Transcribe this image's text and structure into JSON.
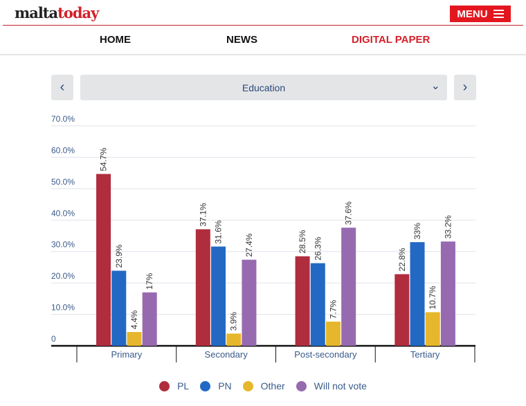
{
  "header": {
    "logo_part1": "malta",
    "logo_part2": "today",
    "menu_label": "MENU"
  },
  "nav": {
    "items": [
      "HOME",
      "NEWS",
      "DIGITAL PAPER"
    ]
  },
  "selector": {
    "prev": "‹",
    "value": "Education",
    "next": "›",
    "chevron": "⌄"
  },
  "chart_data": {
    "type": "bar",
    "title": "Education",
    "categories": [
      "Primary",
      "Secondary",
      "Post-secondary",
      "Tertiary"
    ],
    "series": [
      {
        "name": "PL",
        "color": "#b02d3e",
        "values": [
          54.7,
          37.1,
          28.5,
          22.8
        ],
        "labels": [
          "54.7%",
          "37.1%",
          "28.5%",
          "22.8%"
        ]
      },
      {
        "name": "PN",
        "color": "#2369c4",
        "values": [
          23.9,
          31.6,
          26.3,
          33
        ],
        "labels": [
          "23.9%",
          "31.6%",
          "26.3%",
          "33%"
        ]
      },
      {
        "name": "Other",
        "color": "#e6b72c",
        "values": [
          4.4,
          3.9,
          7.7,
          10.7
        ],
        "labels": [
          "4.4%",
          "3.9%",
          "7.7%",
          "10.7%"
        ]
      },
      {
        "name": "Will not vote",
        "color": "#976ab0",
        "values": [
          17,
          27.4,
          37.6,
          33.2
        ],
        "labels": [
          "17%",
          "27.4%",
          "37.6%",
          "33.2%"
        ]
      }
    ],
    "yticks": [
      0,
      10,
      20,
      30,
      40,
      50,
      60,
      70
    ],
    "ytick_labels": [
      "0",
      "10.0%",
      "20.0%",
      "30.0%",
      "40.0%",
      "50.0%",
      "60.0%",
      "70.0%"
    ],
    "ylim": [
      0,
      70
    ],
    "grid": true,
    "legend": "bottom"
  }
}
